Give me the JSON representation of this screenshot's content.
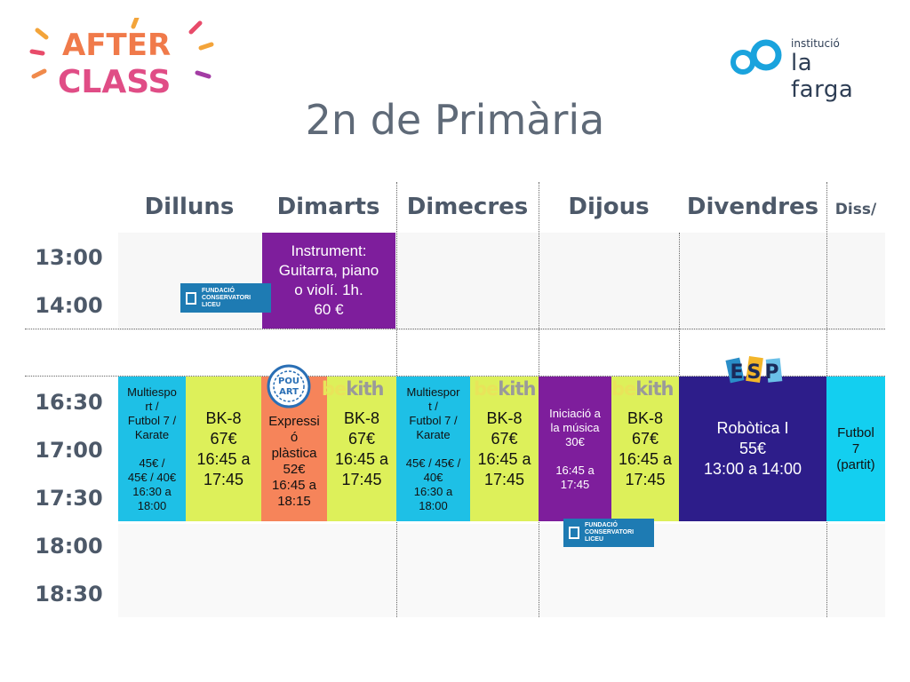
{
  "header": {
    "brand_logo": {
      "line1": "AFTER",
      "line2": "CLASS"
    },
    "institution": {
      "small": "institució",
      "name": "la farga"
    },
    "title": "2n de Primària"
  },
  "days": [
    "Dilluns",
    "Dimarts",
    "Dimecres",
    "Dijous",
    "Divendres",
    "Diss/"
  ],
  "times": [
    "13:00",
    "14:00",
    "16:30",
    "17:00",
    "17:30",
    "18:00",
    "18:30"
  ],
  "activities": {
    "instrument": "Instrument:\nGuitarra, piano\no violí. 1h.\n60 €",
    "multisport_mon": "Multiespo\nrt /\nFutbol 7 /\nKarate\n\n45€ /\n45€ / 40€\n16:30 a\n18:00",
    "bk8_mon": "BK-8\n67€\n16:45 a\n17:45",
    "expression": "Expressi\nó\nplàstica\n52€\n16:45 a\n18:15",
    "bk8_tue": "BK-8\n67€\n16:45 a\n17:45",
    "multisport_wed": "Multiespor\nt /\nFutbol 7 /\nKarate\n\n45€ / 45€ /\n40€\n16:30 a\n18:00",
    "bk8_wed": "BK-8\n67€\n16:45 a\n17:45",
    "music_intro": "Iniciació a\nla música\n30€\n\n16:45 a\n17:45",
    "bk8_thu": "BK-8\n67€\n16:45 a\n17:45",
    "robotics": "Robòtica I\n55€\n13:00 a 14:00",
    "football_sat": "Futbol\n7\n(partit)"
  },
  "badges": {
    "liceu": {
      "line1": "FUNDACIÓ",
      "line2": "CONSERVATORI",
      "line3": "LICEU"
    },
    "bekith": {
      "be": "be",
      "kith": "kith"
    },
    "pouart": {
      "line1": "POU",
      "line2": "ART"
    },
    "esp": "ESP"
  },
  "colors": {
    "cyan": "#1ec0e6",
    "lime": "#ddf05a",
    "orange": "#f6845a",
    "purple": "#7e1e9c",
    "navy": "#2d1d8a",
    "liceu_blue": "#1e7bb3"
  }
}
